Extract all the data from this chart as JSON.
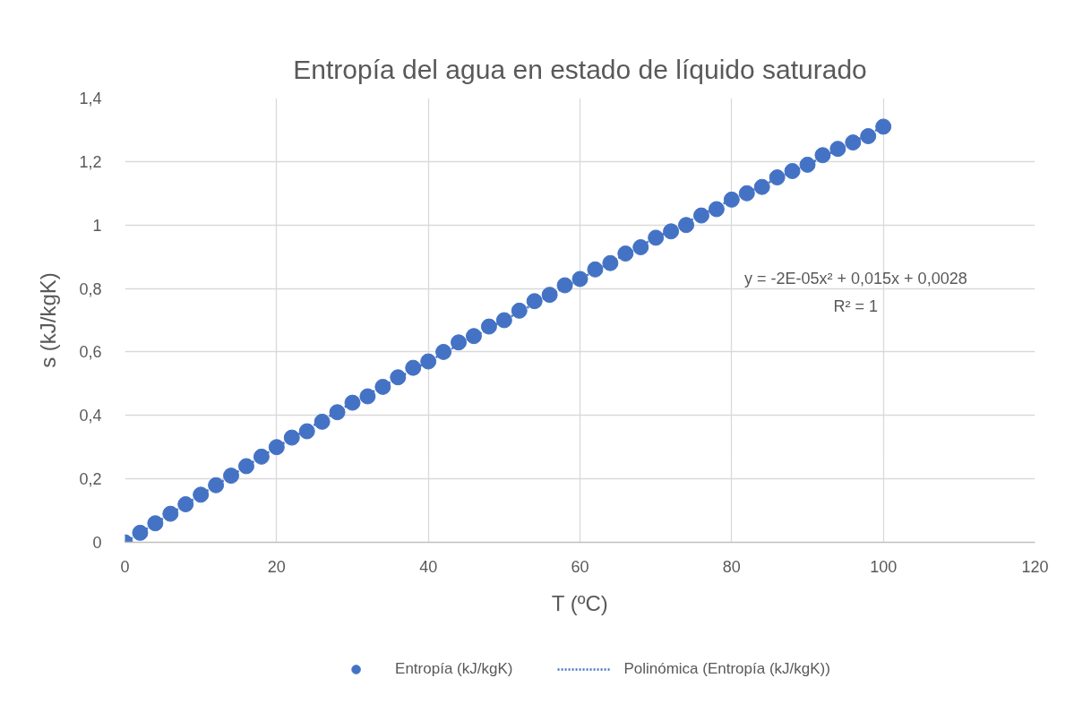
{
  "chart_data": {
    "type": "scatter",
    "title": "Entropía del agua en estado de líquido saturado",
    "xlabel": "T (ºC)",
    "ylabel": "s (kJ/kgK)",
    "xlim": [
      0,
      120
    ],
    "xticks": [
      0,
      20,
      40,
      60,
      80,
      100,
      120
    ],
    "ylim": [
      0,
      1.4
    ],
    "yticks": [
      0,
      {
        "value": 0.2,
        "label": "0,2"
      },
      {
        "value": 0.4,
        "label": "0,4"
      },
      {
        "value": 0.6,
        "label": "0,6"
      },
      {
        "value": 0.8,
        "label": "0,8"
      },
      1,
      {
        "value": 1.2,
        "label": "1,2"
      },
      {
        "value": 1.4,
        "label": "1,4"
      }
    ],
    "grid": true,
    "legend": "bottom",
    "annotations": [
      "y = -2E-05x² + 0,015x + 0,0028",
      "R² = 1"
    ],
    "series": [
      {
        "name": "Entropía (kJ/kgK)",
        "marker": "circle",
        "color": "#4472c4",
        "x": [
          0,
          2,
          4,
          6,
          8,
          10,
          12,
          14,
          16,
          18,
          20,
          22,
          24,
          26,
          28,
          30,
          32,
          34,
          36,
          38,
          40,
          42,
          44,
          46,
          48,
          50,
          52,
          54,
          56,
          58,
          60,
          62,
          64,
          66,
          68,
          70,
          72,
          74,
          76,
          78,
          80,
          82,
          84,
          86,
          88,
          90,
          92,
          94,
          96,
          98,
          100
        ],
        "values": [
          0.0,
          0.03,
          0.06,
          0.09,
          0.12,
          0.15,
          0.18,
          0.21,
          0.24,
          0.27,
          0.3,
          0.33,
          0.35,
          0.38,
          0.41,
          0.44,
          0.46,
          0.49,
          0.52,
          0.55,
          0.57,
          0.6,
          0.63,
          0.65,
          0.68,
          0.7,
          0.73,
          0.76,
          0.78,
          0.81,
          0.83,
          0.86,
          0.88,
          0.91,
          0.93,
          0.96,
          0.98,
          1.0,
          1.03,
          1.05,
          1.08,
          1.1,
          1.12,
          1.15,
          1.17,
          1.19,
          1.22,
          1.24,
          1.26,
          1.28,
          1.31
        ]
      },
      {
        "name": "Polinómica (Entropía (kJ/kgK))",
        "type": "line",
        "line_style": "dotted",
        "color": "#4472c4",
        "x": [
          0,
          10,
          20,
          30,
          40,
          50,
          60,
          70,
          80,
          90,
          100
        ],
        "values": [
          0.0,
          0.15,
          0.3,
          0.44,
          0.57,
          0.7,
          0.83,
          0.96,
          1.08,
          1.19,
          1.31
        ]
      }
    ]
  }
}
